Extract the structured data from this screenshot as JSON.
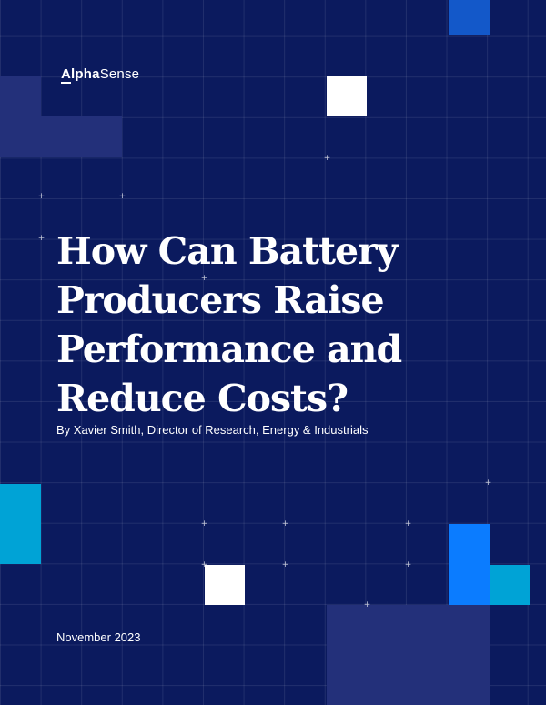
{
  "brand": {
    "name_strong": "Alpha",
    "name_light": "Sense"
  },
  "report": {
    "title": "How Can Battery\nProducers Raise\nPerformance and\nReduce Costs?",
    "byline": "By Xavier Smith, Director of Research, Energy & Industrials",
    "date": "November 2023"
  },
  "colors": {
    "background": "#0b1a5e",
    "white_block": "#ffffff",
    "cyan_block": "#00a3d6",
    "bright_blue_block": "#0b7cff",
    "blue_block": "#1358c9",
    "faint_block": "#23307a"
  }
}
